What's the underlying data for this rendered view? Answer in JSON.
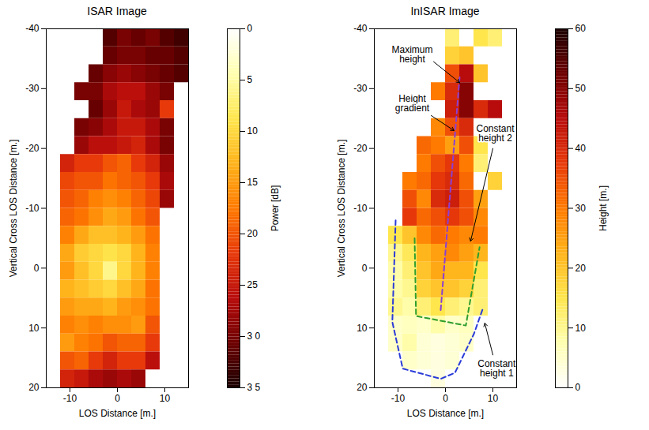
{
  "chart_data": [
    {
      "type": "heatmap",
      "title": "ISAR Image",
      "xlabel": "LOS Distance [m.]",
      "ylabel": "Vertical Cross LOS Distance [m.]",
      "xlim": [
        -15,
        15
      ],
      "ylim": [
        20,
        -40
      ],
      "xticks": [
        -10,
        0,
        10
      ],
      "yticks": [
        -40,
        -30,
        -20,
        -10,
        0,
        10,
        20
      ],
      "x_bins": [
        -15,
        -12,
        -9,
        -6,
        -3,
        0,
        3,
        6,
        9,
        12,
        15
      ],
      "y_bins": [
        -40,
        -37,
        -34,
        -31,
        -28,
        -25,
        -22,
        -19,
        -16,
        -13,
        -10,
        -7,
        -4,
        -1,
        2,
        5,
        8,
        11,
        14,
        17,
        20
      ],
      "cells": [
        [
          null,
          null,
          null,
          null,
          32,
          30,
          31,
          30,
          32,
          33
        ],
        [
          null,
          null,
          null,
          null,
          31,
          30,
          30,
          31,
          31,
          32
        ],
        [
          null,
          null,
          null,
          31,
          29,
          28,
          29,
          30,
          31,
          32
        ],
        [
          null,
          null,
          30,
          30,
          27,
          26,
          26,
          28,
          30,
          null
        ],
        [
          null,
          null,
          null,
          31,
          28,
          25,
          27,
          28,
          22,
          null
        ],
        [
          null,
          null,
          30,
          29,
          27,
          25,
          25,
          27,
          30,
          null
        ],
        [
          null,
          null,
          28,
          26,
          26,
          25,
          24,
          27,
          30,
          null
        ],
        [
          null,
          24,
          22,
          22,
          20,
          19,
          22,
          24,
          28,
          null
        ],
        [
          null,
          21,
          20,
          20,
          18,
          19,
          20,
          22,
          27,
          null
        ],
        [
          null,
          20,
          19,
          17,
          16,
          17,
          19,
          21,
          28,
          null
        ],
        [
          null,
          19,
          18,
          16,
          14,
          15,
          18,
          20,
          null,
          null
        ],
        [
          null,
          17,
          14,
          12,
          12,
          13,
          15,
          18,
          null,
          null
        ],
        [
          null,
          14,
          11,
          10,
          9,
          10,
          13,
          17,
          null,
          null
        ],
        [
          null,
          15,
          12,
          10,
          6,
          10,
          13,
          17,
          null,
          null
        ],
        [
          null,
          13,
          12,
          11,
          10,
          12,
          14,
          18,
          null,
          null
        ],
        [
          null,
          15,
          14,
          14,
          13,
          15,
          16,
          18,
          null,
          null
        ],
        [
          null,
          17,
          16,
          17,
          16,
          16,
          15,
          20,
          null,
          null
        ],
        [
          null,
          15,
          17,
          18,
          20,
          19,
          19,
          22,
          null,
          null
        ],
        [
          null,
          20,
          19,
          22,
          24,
          22,
          22,
          26,
          null,
          null
        ],
        [
          null,
          24,
          25,
          27,
          28,
          27,
          28,
          null,
          null,
          null
        ]
      ],
      "colorbar": {
        "label": "Power [dB]",
        "lim": [
          35,
          0
        ],
        "ticks": [
          0,
          5,
          10,
          15,
          20,
          25,
          {
            "value": 30,
            "label": "3 0"
          },
          {
            "value": 35,
            "label": "3 5"
          }
        ]
      }
    },
    {
      "type": "heatmap",
      "title": "InISAR Image",
      "xlabel": "LOS Distance [m.]",
      "ylabel": "Vertical Cross LOS Distance [m.]",
      "xlim": [
        -15,
        15
      ],
      "ylim": [
        20,
        -40
      ],
      "xticks": [
        -10,
        0,
        10
      ],
      "yticks": [
        -40,
        -30,
        -20,
        -10,
        0,
        10,
        20
      ],
      "x_bins": [
        -15,
        -12,
        -9,
        -6,
        -3,
        0,
        3,
        6,
        9,
        12,
        15
      ],
      "y_bins": [
        -40,
        -37,
        -34,
        -31,
        -28,
        -25,
        -22,
        -19,
        -16,
        -13,
        -10,
        -7,
        -4,
        -1,
        2,
        5,
        8,
        11,
        14,
        17,
        20
      ],
      "cells": [
        [
          null,
          null,
          null,
          null,
          null,
          12,
          null,
          15,
          12,
          null
        ],
        [
          null,
          null,
          null,
          null,
          null,
          18,
          20,
          null,
          null,
          null
        ],
        [
          null,
          null,
          null,
          null,
          null,
          35,
          45,
          20,
          null,
          null
        ],
        [
          null,
          null,
          null,
          null,
          30,
          40,
          50,
          null,
          null,
          null
        ],
        [
          null,
          null,
          null,
          null,
          null,
          42,
          50,
          40,
          45,
          null
        ],
        [
          null,
          null,
          null,
          null,
          28,
          35,
          40,
          null,
          null,
          null
        ],
        [
          null,
          null,
          null,
          32,
          30,
          25,
          35,
          15,
          null,
          null
        ],
        [
          null,
          null,
          null,
          30,
          35,
          38,
          30,
          12,
          null,
          null
        ],
        [
          null,
          null,
          30,
          32,
          38,
          40,
          32,
          null,
          18,
          null
        ],
        [
          null,
          null,
          35,
          28,
          40,
          42,
          35,
          25,
          null,
          null
        ],
        [
          null,
          null,
          38,
          32,
          35,
          38,
          35,
          28,
          null,
          null
        ],
        [
          null,
          15,
          20,
          28,
          32,
          30,
          28,
          30,
          null,
          null
        ],
        [
          null,
          10,
          14,
          22,
          25,
          28,
          25,
          22,
          null,
          null
        ],
        [
          null,
          8,
          12,
          20,
          24,
          22,
          22,
          15,
          null,
          null
        ],
        [
          null,
          8,
          10,
          18,
          20,
          20,
          18,
          12,
          null,
          null
        ],
        [
          null,
          10,
          8,
          12,
          15,
          12,
          10,
          12,
          null,
          null
        ],
        [
          null,
          5,
          6,
          5,
          8,
          5,
          6,
          null,
          null,
          null
        ],
        [
          null,
          5,
          8,
          4,
          3,
          4,
          5,
          null,
          null,
          null
        ],
        [
          null,
          null,
          5,
          4,
          3,
          4,
          null,
          null,
          null,
          null
        ],
        [
          null,
          null,
          null,
          null,
          3,
          null,
          null,
          null,
          null,
          null
        ]
      ],
      "colorbar": {
        "label": "Height [m.]",
        "lim": [
          0,
          60
        ],
        "ticks": [
          0,
          10,
          20,
          30,
          40,
          50,
          60
        ]
      },
      "regions": [
        {
          "color": "#2a3bd8",
          "line_style": "dashed",
          "points": [
            [
              -10.5,
              -8
            ],
            [
              -11.2,
              9
            ],
            [
              -9,
              16.8
            ],
            [
              -1,
              18.5
            ],
            [
              2,
              17.5
            ],
            [
              6,
              11
            ],
            [
              8,
              6.5
            ]
          ]
        },
        {
          "color": "#2e9e2e",
          "line_style": "dashed",
          "points": [
            [
              -6.5,
              -5
            ],
            [
              -6.2,
              8
            ],
            [
              4.3,
              9.6
            ],
            [
              7.2,
              -3.5
            ]
          ]
        },
        {
          "color": "#8a3fd6",
          "line_style": "dashed",
          "points": [
            [
              -1,
              7
            ],
            [
              3,
              -32
            ]
          ]
        }
      ],
      "annotations": [
        {
          "text": "Maximum height",
          "xytext": [
            -7,
            -35.7
          ],
          "arrow": [
            [
              -2.5,
              -34.5
            ],
            [
              3,
              -31
            ]
          ]
        },
        {
          "text": "Height gradient",
          "xytext": [
            -7,
            -27.5
          ],
          "arrow": [
            [
              -3,
              -25.5
            ],
            [
              1.8,
              -23
            ]
          ]
        },
        {
          "text": "Constant height 2",
          "xytext": [
            10.5,
            -22.5
          ],
          "arrow": [
            [
              10,
              -20
            ],
            [
              5.3,
              -4.5
            ]
          ]
        },
        {
          "text": "Constant height 1",
          "xytext": [
            10.8,
            16.8
          ],
          "arrow": [
            [
              10,
              14.5
            ],
            [
              8.3,
              9.2
            ]
          ]
        }
      ]
    }
  ]
}
